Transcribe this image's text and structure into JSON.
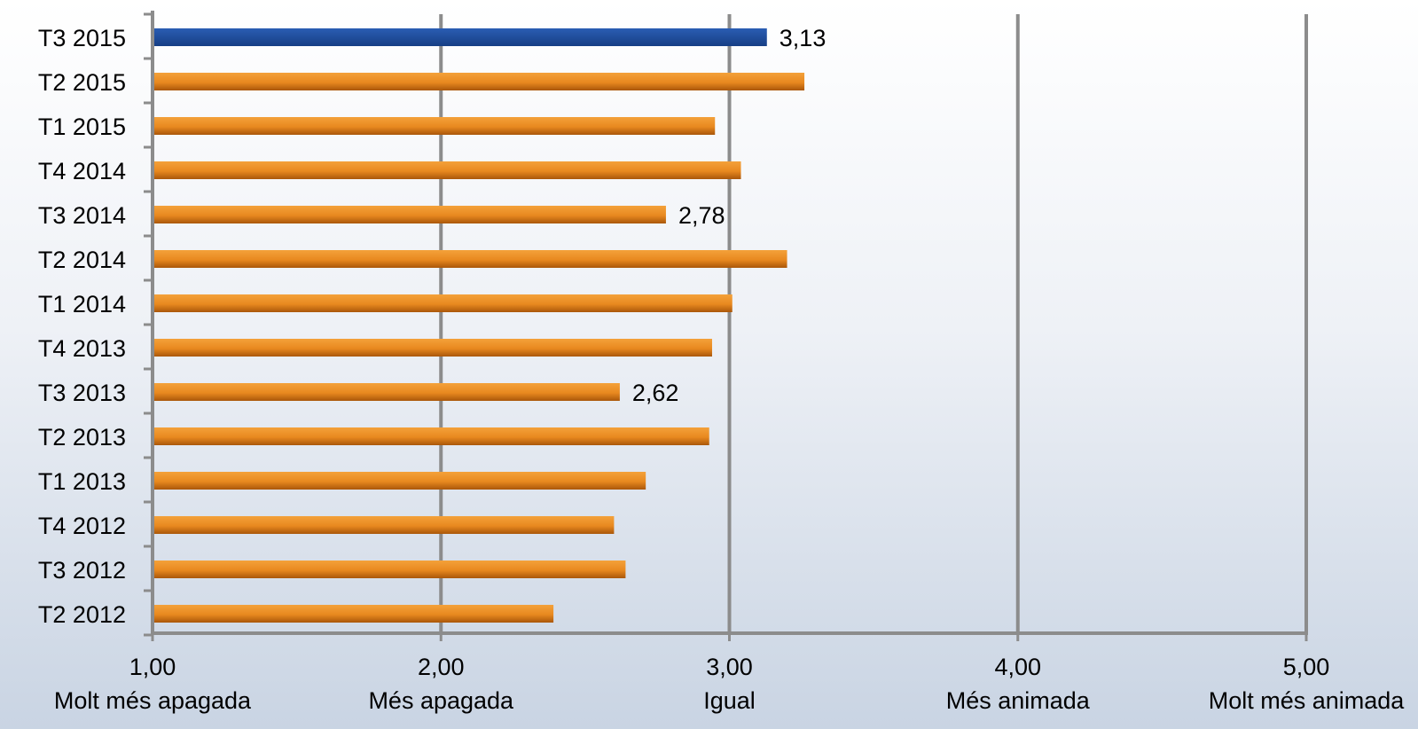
{
  "chart_data": {
    "type": "bar",
    "orientation": "horizontal",
    "categories": [
      "T3 2015",
      "T2 2015",
      "T1 2015",
      "T4 2014",
      "T3 2014",
      "T2 2014",
      "T1 2014",
      "T4 2013",
      "T3 2013",
      "T2 2013",
      "T1 2013",
      "T4 2012",
      "T3 2012",
      "T2 2012"
    ],
    "values": [
      3.13,
      3.26,
      2.95,
      3.04,
      2.78,
      3.2,
      3.01,
      2.94,
      2.62,
      2.93,
      2.71,
      2.6,
      2.64,
      2.39
    ],
    "data_labels": {
      "0": "3,13",
      "4": "2,78",
      "8": "2,62"
    },
    "highlight_index": 0,
    "xlim": [
      1,
      5
    ],
    "x_ticks": [
      {
        "value": 1,
        "label": "1,00",
        "sublabel": "Molt més apagada"
      },
      {
        "value": 2,
        "label": "2,00",
        "sublabel": "Més apagada"
      },
      {
        "value": 3,
        "label": "3,00",
        "sublabel": "Igual"
      },
      {
        "value": 4,
        "label": "4,00",
        "sublabel": "Més animada"
      },
      {
        "value": 5,
        "label": "5,00",
        "sublabel": "Molt més animada"
      }
    ],
    "grid": true,
    "colors": {
      "highlight": "#1f4e9c",
      "bar": "#e8891f",
      "bar_dark": "#b45f0c",
      "grid": "#8c8c8c"
    }
  }
}
